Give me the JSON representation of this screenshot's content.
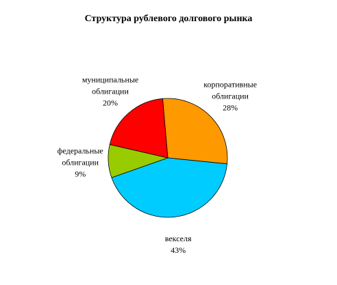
{
  "chart_data": {
    "type": "pie",
    "title": "Структура рублевого долгового рынка",
    "categories": [
      "корпоративные облигации",
      "векселя",
      "федеральные облигации",
      "муниципальные облигации"
    ],
    "values": [
      28,
      43,
      9,
      20
    ],
    "value_labels": [
      "28%",
      "43%",
      "9%",
      "20%"
    ],
    "colors": [
      "#ff9900",
      "#00ccff",
      "#99cc00",
      "#ff0000"
    ]
  }
}
